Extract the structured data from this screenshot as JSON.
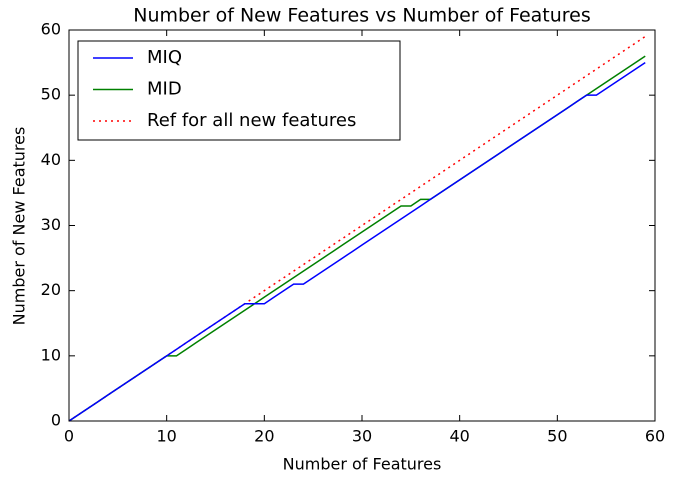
{
  "chart_data": {
    "type": "line",
    "title": "Number of New Features vs Number of Features",
    "x_label": "Number of Features",
    "y_label": "Number of New Features",
    "x": [
      0,
      1,
      2,
      3,
      4,
      5,
      6,
      7,
      8,
      9,
      10,
      11,
      12,
      13,
      14,
      15,
      16,
      17,
      18,
      19,
      20,
      21,
      22,
      23,
      24,
      25,
      26,
      27,
      28,
      29,
      30,
      31,
      32,
      33,
      34,
      35,
      36,
      37,
      38,
      39,
      40,
      41,
      42,
      43,
      44,
      45,
      46,
      47,
      48,
      49,
      50,
      51,
      52,
      53,
      54,
      55,
      56,
      57,
      58,
      59
    ],
    "series": [
      {
        "name": "MIQ",
        "color": "#0000ff",
        "style": "solid",
        "values": [
          0,
          1,
          2,
          3,
          4,
          5,
          6,
          7,
          8,
          9,
          10,
          11,
          12,
          13,
          14,
          15,
          16,
          17,
          18,
          18,
          18,
          19,
          20,
          21,
          21,
          22,
          23,
          24,
          25,
          26,
          27,
          28,
          29,
          30,
          31,
          32,
          33,
          34,
          35,
          36,
          37,
          38,
          39,
          40,
          41,
          42,
          43,
          44,
          45,
          46,
          47,
          48,
          49,
          50,
          50,
          51,
          52,
          53,
          54,
          55
        ]
      },
      {
        "name": "MID",
        "color": "#008000",
        "style": "solid",
        "values": [
          0,
          1,
          2,
          3,
          4,
          5,
          6,
          7,
          8,
          9,
          10,
          10,
          11,
          12,
          13,
          14,
          15,
          16,
          17,
          18,
          19,
          20,
          21,
          22,
          23,
          24,
          25,
          26,
          27,
          28,
          29,
          30,
          31,
          32,
          33,
          33,
          34,
          34,
          35,
          36,
          37,
          38,
          39,
          40,
          41,
          42,
          43,
          44,
          45,
          46,
          47,
          48,
          49,
          50,
          51,
          52,
          53,
          54,
          55,
          56
        ]
      },
      {
        "name": "Ref for all new features",
        "color": "#ff0000",
        "style": "dotted",
        "values": [
          0,
          1,
          2,
          3,
          4,
          5,
          6,
          7,
          8,
          9,
          10,
          11,
          12,
          13,
          14,
          15,
          16,
          17,
          18,
          19,
          20,
          21,
          22,
          23,
          24,
          25,
          26,
          27,
          28,
          29,
          30,
          31,
          32,
          33,
          34,
          35,
          36,
          37,
          38,
          39,
          40,
          41,
          42,
          43,
          44,
          45,
          46,
          47,
          48,
          49,
          50,
          51,
          52,
          53,
          54,
          55,
          56,
          57,
          58,
          59
        ]
      }
    ],
    "xlim": [
      0,
      60
    ],
    "xticks": [
      0,
      10,
      20,
      30,
      40,
      50,
      60
    ],
    "ylim": [
      0,
      60
    ],
    "yticks": [
      0,
      10,
      20,
      30,
      40,
      50,
      60
    ],
    "legend": "upper left"
  }
}
